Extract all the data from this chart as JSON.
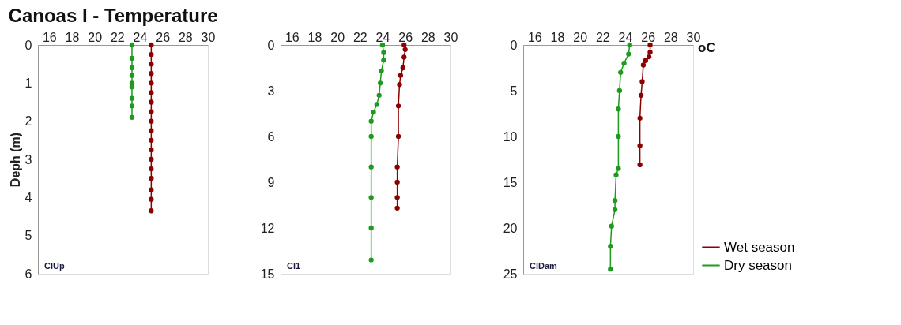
{
  "chart_data": [
    {
      "type": "line",
      "title": "Canoas I - Temperature",
      "ylabel": "Deph (m)",
      "annotations": [
        "ClUp"
      ],
      "xlim": [
        15,
        30
      ],
      "xticks": [
        16,
        18,
        20,
        22,
        24,
        26,
        28,
        30
      ],
      "ylim": [
        6,
        0
      ],
      "yticks": [
        0,
        1,
        2,
        3,
        4,
        5,
        6
      ],
      "grid": false,
      "marker": "circle",
      "line_style": "solid",
      "legend": false,
      "series": [
        {
          "color": "#8b0000",
          "x": [
            25.0,
            25.0,
            25.0,
            25.0,
            25.0,
            25.0,
            25.0,
            25.0,
            25.0,
            25.0,
            25.0,
            25.0,
            25.0,
            25.0,
            25.0,
            25.0,
            25.0,
            25.0
          ],
          "values": [
            0,
            0.25,
            0.5,
            0.75,
            1.0,
            1.25,
            1.5,
            1.75,
            2.0,
            2.25,
            2.5,
            2.75,
            3.0,
            3.25,
            3.5,
            3.8,
            4.05,
            4.35
          ]
        },
        {
          "color": "#1e9a1e",
          "x": [
            23.3,
            23.3,
            23.3,
            23.3,
            23.3,
            23.3,
            23.3,
            23.3,
            23.3
          ],
          "values": [
            0,
            0.35,
            0.6,
            0.8,
            1.0,
            1.1,
            1.4,
            1.6,
            1.9
          ]
        }
      ]
    },
    {
      "type": "line",
      "annotations": [
        "Cl1"
      ],
      "xlim": [
        15,
        30
      ],
      "xticks": [
        16,
        18,
        20,
        22,
        24,
        26,
        28,
        30
      ],
      "ylim": [
        15,
        0
      ],
      "yticks": [
        0,
        3,
        6,
        9,
        12,
        15
      ],
      "grid": false,
      "marker": "circle",
      "line_style": "solid",
      "legend": false,
      "series": [
        {
          "color": "#8b0000",
          "x": [
            25.9,
            26.0,
            25.9,
            25.8,
            25.6,
            25.5,
            25.4,
            25.4,
            25.3,
            25.3,
            25.3,
            25.3
          ],
          "values": [
            0,
            0.3,
            0.8,
            1.5,
            2.0,
            2.6,
            4.0,
            6.0,
            8.0,
            9.0,
            10.0,
            10.7
          ]
        },
        {
          "color": "#1e9a1e",
          "x": [
            24.0,
            24.1,
            24.1,
            23.9,
            23.8,
            23.7,
            23.5,
            23.2,
            23.0,
            23.0,
            23.0,
            23.0,
            23.0,
            23.0
          ],
          "values": [
            0,
            0.5,
            1.0,
            1.7,
            2.5,
            3.3,
            3.9,
            4.4,
            5.0,
            6.0,
            8.0,
            10.0,
            12.0,
            14.1
          ]
        }
      ]
    },
    {
      "type": "line",
      "xlabel": "oC",
      "annotations": [
        "ClDam"
      ],
      "xlim": [
        15,
        30
      ],
      "xticks": [
        16,
        18,
        20,
        22,
        24,
        26,
        28,
        30
      ],
      "ylim": [
        25,
        0
      ],
      "yticks": [
        0,
        5,
        10,
        15,
        20,
        25
      ],
      "grid": false,
      "marker": "circle",
      "line_style": "solid",
      "legend": "bottom right",
      "series": [
        {
          "name": "Wet season",
          "color": "#8b0000",
          "x": [
            26.2,
            26.2,
            26.1,
            25.8,
            25.6,
            25.5,
            25.4,
            25.3,
            25.3,
            25.3
          ],
          "values": [
            0,
            0.8,
            1.3,
            1.7,
            2.2,
            4.0,
            5.5,
            8.0,
            11.0,
            13.1
          ]
        },
        {
          "name": "Dry season",
          "color": "#1e9a1e",
          "x": [
            24.4,
            24.3,
            23.9,
            23.6,
            23.5,
            23.4,
            23.4,
            23.4,
            23.2,
            23.1,
            23.1,
            22.8,
            22.7,
            22.7
          ],
          "values": [
            0,
            1.0,
            2.0,
            3.0,
            5.0,
            7.0,
            10.0,
            13.5,
            14.2,
            17.0,
            18.0,
            19.8,
            22.0,
            24.5
          ]
        }
      ]
    }
  ]
}
